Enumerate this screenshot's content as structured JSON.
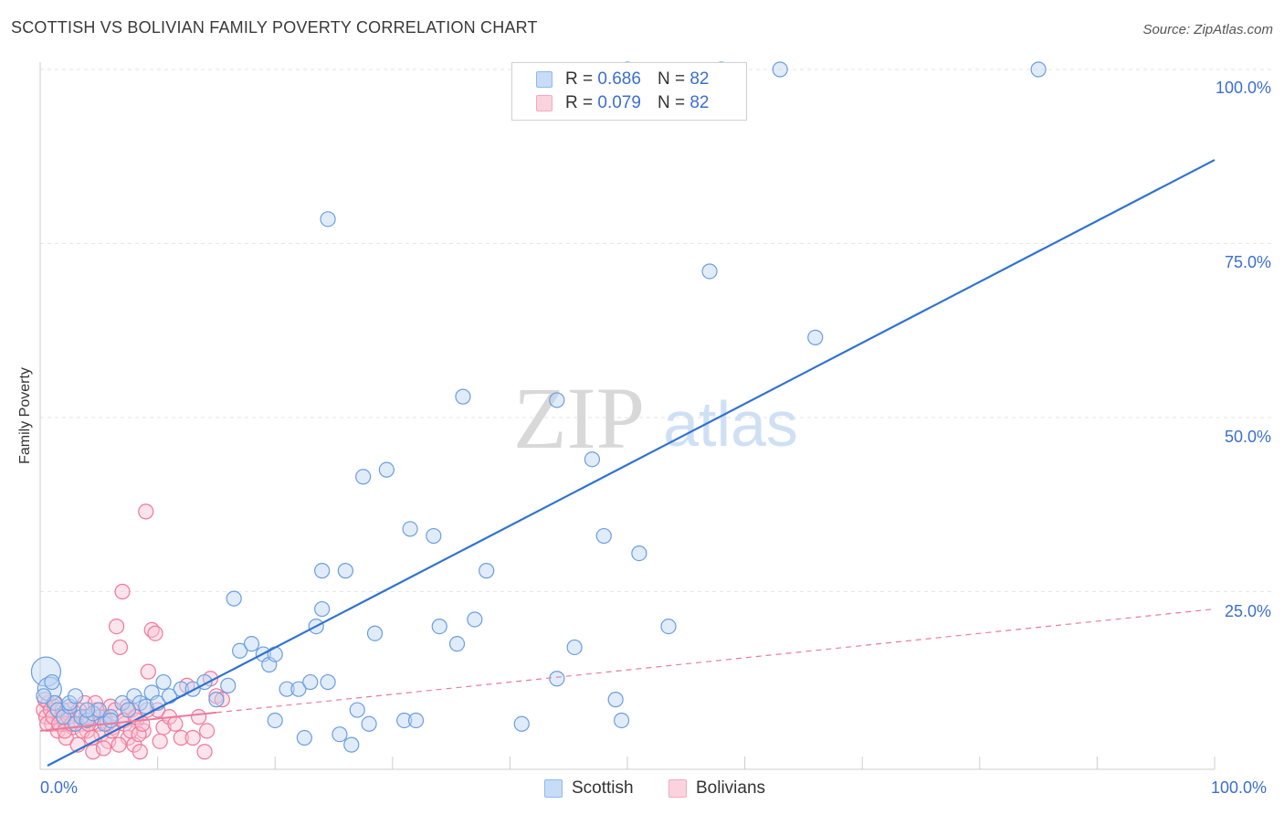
{
  "header": {
    "title": "SCOTTISH VS BOLIVIAN FAMILY POVERTY CORRELATION CHART",
    "source": "Source: ZipAtlas.com"
  },
  "watermark": {
    "zip": "ZIP",
    "atlas": "atlas"
  },
  "legend": {
    "rows": [
      {
        "r_label": "R = ",
        "r_value": "0.686",
        "n_label": "N = ",
        "n_value": "82",
        "color": "#8fb8ee"
      },
      {
        "r_label": "R = ",
        "r_value": "0.079",
        "n_label": "N = ",
        "n_value": "82",
        "color": "#f5a8c0"
      }
    ]
  },
  "bottom_legend": [
    {
      "label": "Scottish",
      "color": "#8fb8ee"
    },
    {
      "label": "Bolivians",
      "color": "#f5a8c0"
    }
  ],
  "chart_data": {
    "type": "scatter",
    "ylabel": "Family Poverty",
    "x_tick_labels": [
      "0.0%",
      "100.0%"
    ],
    "y_tick_labels": [
      "100.0%",
      "75.0%",
      "50.0%",
      "25.0%"
    ],
    "xlim": [
      0,
      100
    ],
    "ylim": [
      0,
      100
    ],
    "grid": true,
    "colors": {
      "scottish": "#4a86d8",
      "bolivians": "#f06890",
      "trend_blue": "#2f72d0",
      "trend_pink": "#e87c9c"
    },
    "series": [
      {
        "name": "Scottish",
        "trend": {
          "x0": 0,
          "y0": 0,
          "x1": 100,
          "y1": 87.0
        },
        "points": [
          [
            0.5,
            13.5
          ],
          [
            0.8,
            11
          ],
          [
            1.2,
            9
          ],
          [
            1.5,
            8
          ],
          [
            2,
            7
          ],
          [
            2.5,
            8.5
          ],
          [
            3,
            6
          ],
          [
            3.5,
            7
          ],
          [
            4,
            6.5
          ],
          [
            4.5,
            7.5
          ],
          [
            5,
            8
          ],
          [
            5.5,
            6
          ],
          [
            6,
            7
          ],
          [
            7,
            9
          ],
          [
            7.5,
            8
          ],
          [
            8,
            10
          ],
          [
            8.5,
            9
          ],
          [
            9,
            8.5
          ],
          [
            9.5,
            10.5
          ],
          [
            10,
            9
          ],
          [
            10.5,
            12
          ],
          [
            11,
            10
          ],
          [
            12,
            11
          ],
          [
            13,
            11
          ],
          [
            14,
            12
          ],
          [
            15,
            9.5
          ],
          [
            16,
            11.5
          ],
          [
            16.5,
            24
          ],
          [
            17,
            16.5
          ],
          [
            18,
            17.5
          ],
          [
            19,
            16
          ],
          [
            19.5,
            14.5
          ],
          [
            20,
            16
          ],
          [
            20,
            6.5
          ],
          [
            21,
            11
          ],
          [
            22,
            11
          ],
          [
            22.5,
            4
          ],
          [
            23,
            12
          ],
          [
            23.5,
            20
          ],
          [
            24,
            22.5
          ],
          [
            24,
            28
          ],
          [
            24.5,
            78.5
          ],
          [
            24.5,
            12
          ],
          [
            25.5,
            4.5
          ],
          [
            26,
            28
          ],
          [
            26.5,
            3
          ],
          [
            27,
            8
          ],
          [
            28,
            6
          ],
          [
            28.5,
            19
          ],
          [
            27.5,
            41.5
          ],
          [
            29.5,
            42.5
          ],
          [
            31,
            6.5
          ],
          [
            31.5,
            34
          ],
          [
            32,
            6.5
          ],
          [
            33.5,
            33
          ],
          [
            34,
            20
          ],
          [
            35.5,
            17.5
          ],
          [
            36,
            53
          ],
          [
            37,
            21
          ],
          [
            38,
            28
          ],
          [
            41,
            6
          ],
          [
            44,
            52.5
          ],
          [
            44,
            12.5
          ],
          [
            45.5,
            17
          ],
          [
            47,
            44
          ],
          [
            48,
            33
          ],
          [
            49,
            9.5
          ],
          [
            49.5,
            6.5
          ],
          [
            51,
            30.5
          ],
          [
            53.5,
            20
          ],
          [
            57,
            71
          ],
          [
            66,
            61.5
          ],
          [
            85,
            100
          ],
          [
            50,
            100
          ],
          [
            58,
            100
          ],
          [
            63,
            100
          ],
          [
            0.3,
            10
          ],
          [
            1,
            12
          ],
          [
            2.5,
            9
          ],
          [
            3,
            10
          ],
          [
            4,
            8
          ],
          [
            6,
            6.5
          ]
        ]
      },
      {
        "name": "Bolivians",
        "trend": {
          "x0": 0,
          "y0": 5.0,
          "x1": 100,
          "y1": 22.5
        },
        "points": [
          [
            0.3,
            8
          ],
          [
            0.5,
            7
          ],
          [
            0.7,
            9
          ],
          [
            1,
            6
          ],
          [
            1.2,
            8.5
          ],
          [
            1.5,
            5
          ],
          [
            1.8,
            7
          ],
          [
            2,
            6.5
          ],
          [
            2.2,
            4
          ],
          [
            2.5,
            8
          ],
          [
            2.8,
            5.5
          ],
          [
            3,
            7.5
          ],
          [
            3.2,
            3
          ],
          [
            3.5,
            6
          ],
          [
            3.8,
            9
          ],
          [
            4,
            5
          ],
          [
            4.2,
            7
          ],
          [
            4.5,
            2
          ],
          [
            4.8,
            8
          ],
          [
            5,
            6
          ],
          [
            5.2,
            4.5
          ],
          [
            5.5,
            7
          ],
          [
            5.8,
            3.5
          ],
          [
            6,
            8.5
          ],
          [
            6.2,
            5.5
          ],
          [
            6.5,
            20
          ],
          [
            6.8,
            17
          ],
          [
            7,
            25
          ],
          [
            7.2,
            6
          ],
          [
            7.5,
            4
          ],
          [
            7.8,
            8
          ],
          [
            8,
            3
          ],
          [
            8.2,
            6.5
          ],
          [
            8.5,
            2
          ],
          [
            8.8,
            5
          ],
          [
            9,
            36.5
          ],
          [
            9.2,
            13.5
          ],
          [
            9.5,
            19.5
          ],
          [
            9.8,
            19
          ],
          [
            10,
            8
          ],
          [
            10.2,
            3.5
          ],
          [
            10.5,
            5.5
          ],
          [
            11,
            7
          ],
          [
            12,
            4
          ],
          [
            12.5,
            11.5
          ],
          [
            13,
            4
          ],
          [
            14,
            2
          ],
          [
            14.2,
            5
          ],
          [
            14.5,
            12.5
          ],
          [
            15,
            10
          ],
          [
            15.5,
            9.5
          ],
          [
            0.4,
            9.5
          ],
          [
            0.6,
            6
          ],
          [
            0.9,
            8
          ],
          [
            1.1,
            7
          ],
          [
            1.3,
            9
          ],
          [
            1.6,
            6
          ],
          [
            1.9,
            8
          ],
          [
            2.1,
            5
          ],
          [
            2.4,
            7
          ],
          [
            2.7,
            6
          ],
          [
            3.3,
            8
          ],
          [
            3.6,
            5
          ],
          [
            3.9,
            7
          ],
          [
            4.1,
            6
          ],
          [
            4.4,
            4
          ],
          [
            4.7,
            9
          ],
          [
            5.1,
            7
          ],
          [
            5.4,
            2.5
          ],
          [
            5.7,
            6
          ],
          [
            6.1,
            5
          ],
          [
            6.4,
            8
          ],
          [
            6.7,
            3
          ],
          [
            7.1,
            6.5
          ],
          [
            7.4,
            8.5
          ],
          [
            7.7,
            5
          ],
          [
            8.1,
            7
          ],
          [
            8.4,
            4.5
          ],
          [
            8.7,
            6
          ],
          [
            9.1,
            8
          ],
          [
            11.5,
            6
          ],
          [
            13.5,
            7
          ]
        ]
      }
    ]
  }
}
